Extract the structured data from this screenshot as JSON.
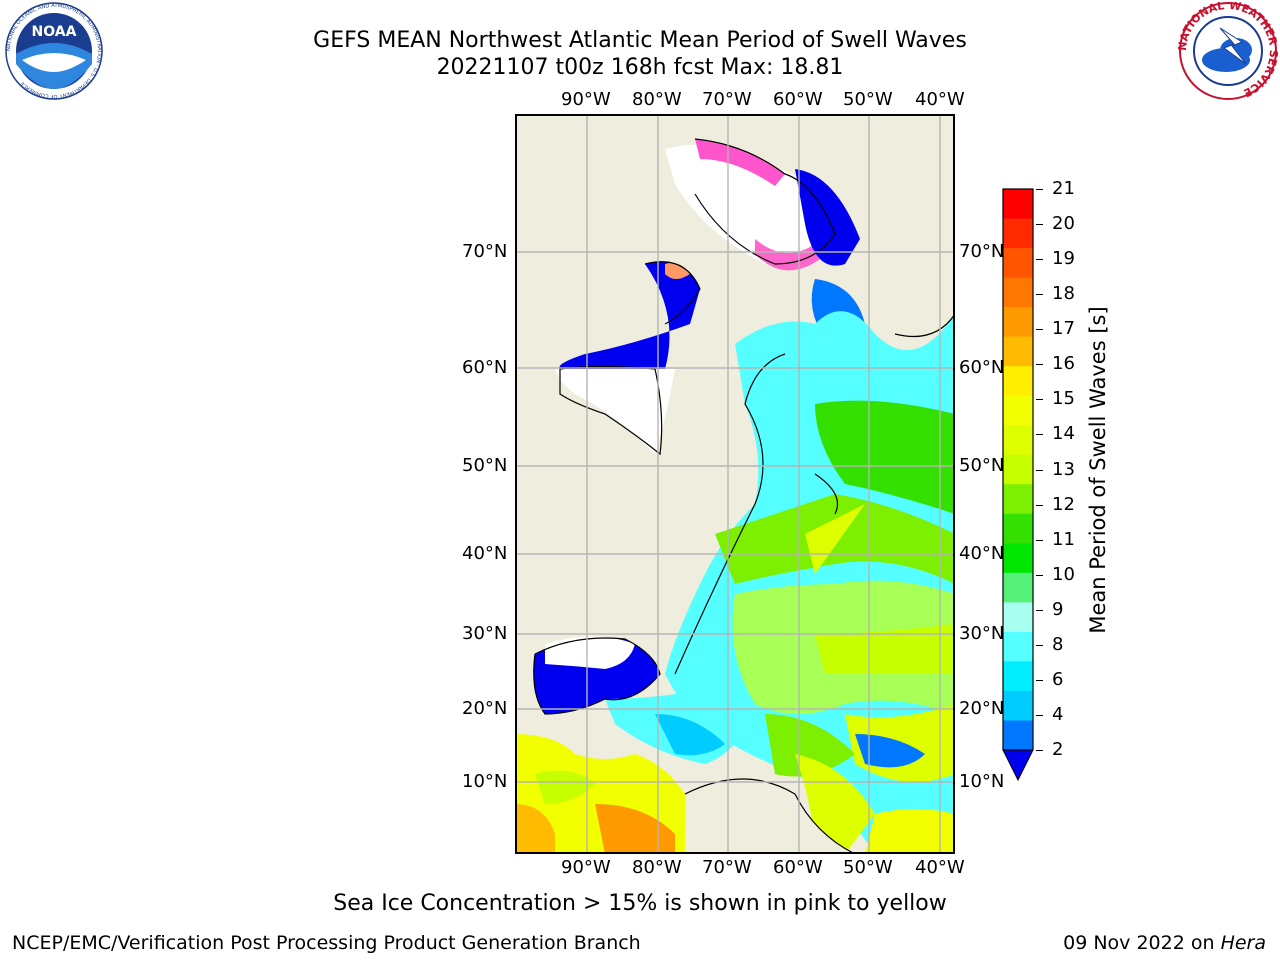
{
  "header": {
    "title_line1": "GEFS MEAN Northwest Atlantic Mean Period of Swell Waves",
    "title_line2": "20221107 t00z 168h fcst   Max: 18.81"
  },
  "logos": {
    "left": "NOAA",
    "left_ring": "NATIONAL OCEANIC AND ATMOSPHERIC ADMINISTRATION · U.S. DEPARTMENT OF COMMERCE",
    "right_ring": "NATIONAL WEATHER SERVICE"
  },
  "map": {
    "lon_labels": [
      "90°W",
      "80°W",
      "70°W",
      "60°W",
      "50°W",
      "40°W"
    ],
    "lat_labels": [
      "70°N",
      "60°N",
      "50°N",
      "40°N",
      "30°N",
      "20°N",
      "10°N"
    ]
  },
  "colorbar": {
    "label": "Mean Period of Swell Waves [s]",
    "ticks": [
      "21",
      "20",
      "19",
      "18",
      "17",
      "16",
      "15",
      "14",
      "13",
      "12",
      "11",
      "10",
      "9",
      "8",
      "6",
      "4",
      "2"
    ],
    "colors": [
      "#ff0000",
      "#ff2a00",
      "#ff5500",
      "#ff7700",
      "#ff9900",
      "#ffbb00",
      "#ffee00",
      "#f2ff00",
      "#ddff00",
      "#c6ff00",
      "#7cf000",
      "#33e000",
      "#00e600",
      "#55f07a",
      "#a8fff0",
      "#55ffff",
      "#00eeff",
      "#00ccff",
      "#0077ff"
    ],
    "extend_color": "#0000ee"
  },
  "caption": "Sea Ice Concentration > 15% is shown in pink to yellow",
  "footer": {
    "left": "NCEP/EMC/Verification Post Processing Product Generation Branch",
    "right_date": "09 Nov 2022 on ",
    "right_host": "Hera"
  }
}
